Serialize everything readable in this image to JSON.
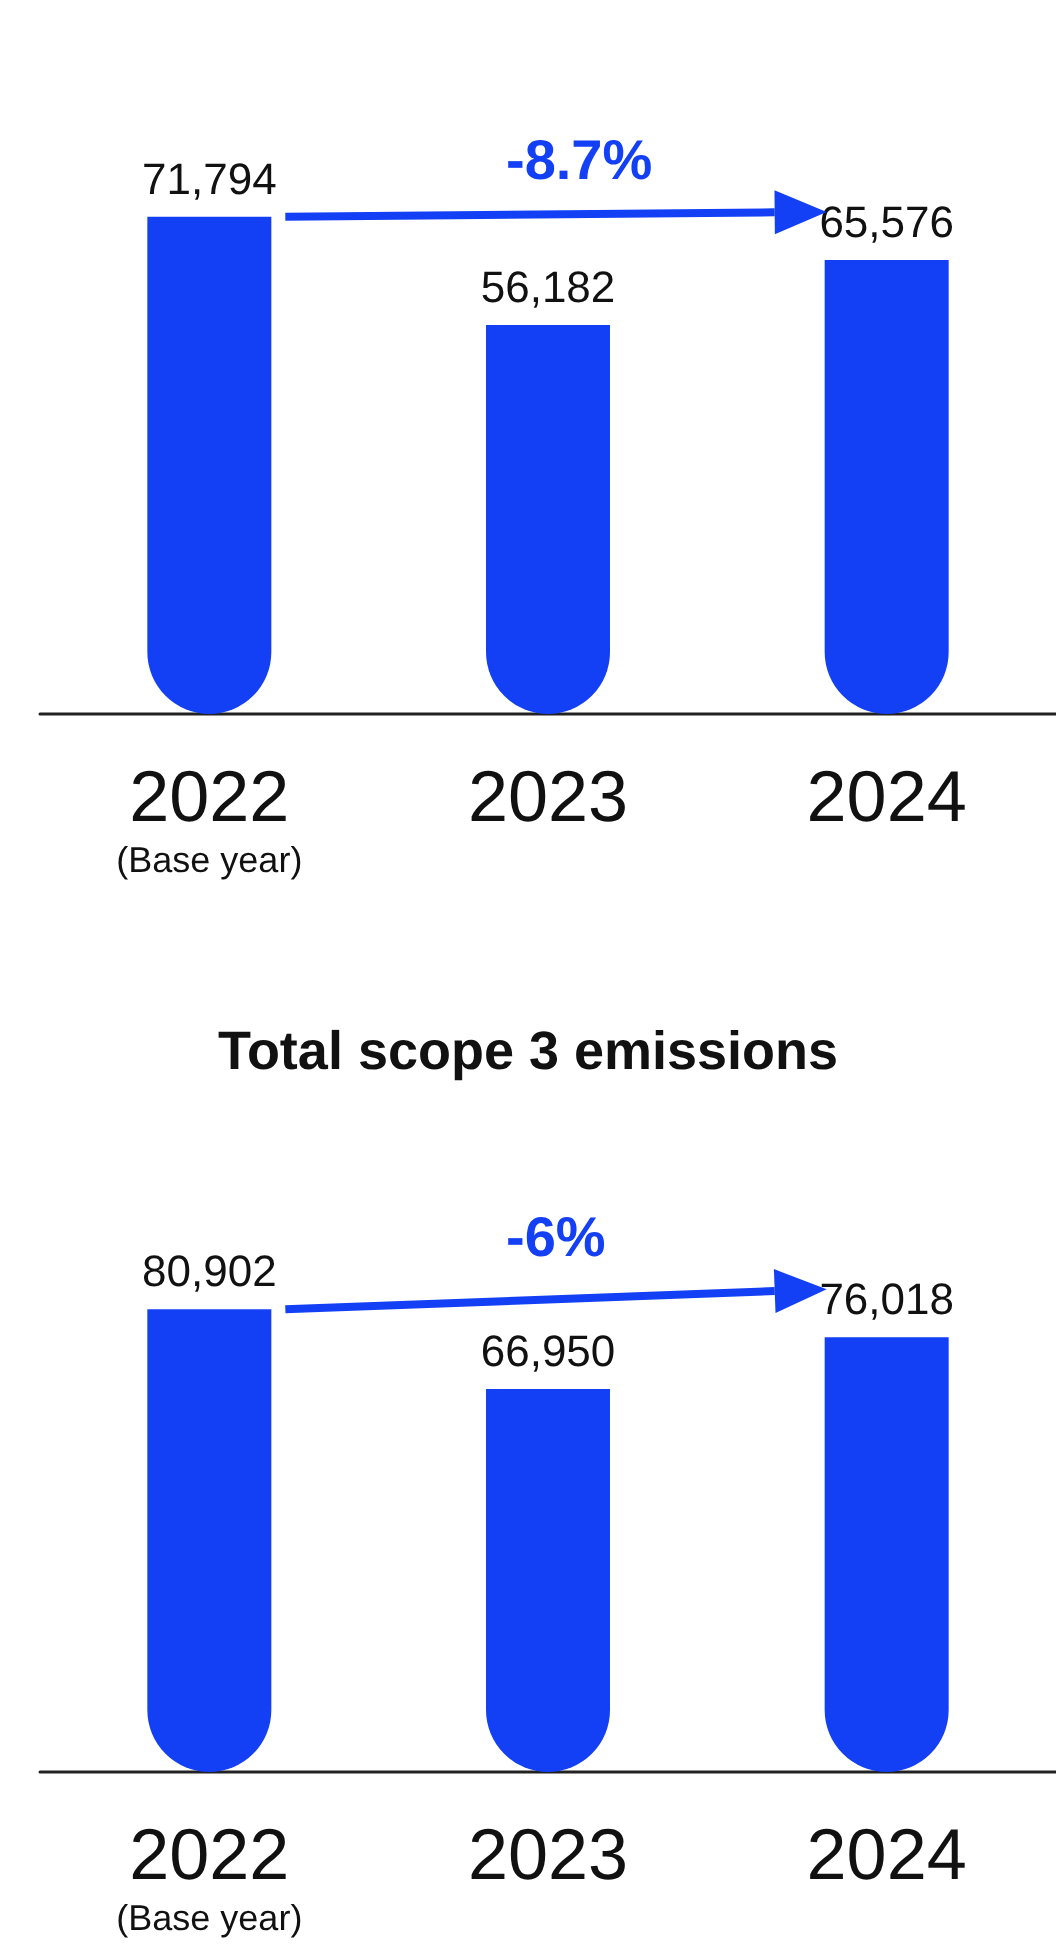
{
  "chart_data": [
    {
      "type": "bar",
      "categories": [
        "2022\n(Base year)",
        "2023",
        "2024"
      ],
      "values": [
        71794,
        56182,
        65576
      ],
      "value_labels": [
        "71,794",
        "56,182",
        "65,576"
      ],
      "color": "#1440f5",
      "annotations": [
        "-8.7%"
      ],
      "tick_labels": "x",
      "grid": false
    },
    {
      "type": "bar",
      "title": "Total scope 3 emissions",
      "categories": [
        "2022\n(Base year)",
        "2023",
        "2024"
      ],
      "values": [
        80902,
        66950,
        76018
      ],
      "value_labels": [
        "80,902",
        "66,950",
        "76,018"
      ],
      "color": "#1440f5",
      "annotations": [
        "-6%"
      ],
      "tick_labels": "x",
      "grid": false
    }
  ]
}
